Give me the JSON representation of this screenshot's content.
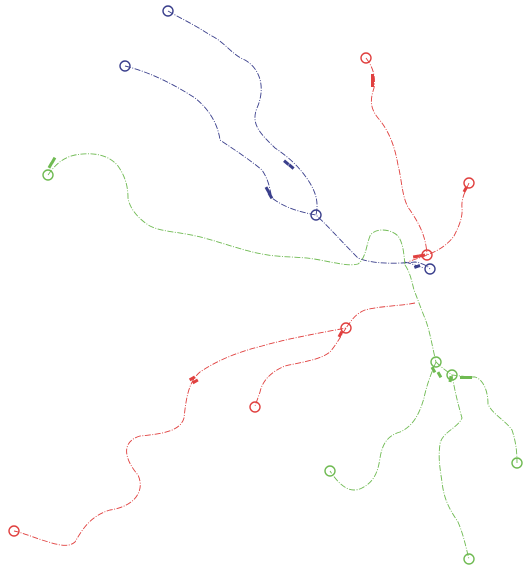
{
  "colors": {
    "background": "#ffffff",
    "red": "#e0403f",
    "blue": "#3a3f8c",
    "green": "#6fba52"
  },
  "diagram": {
    "kind": "tracking-trajectories",
    "groups": [
      {
        "name": "red",
        "color_key": "red",
        "trajectory_count": 6
      },
      {
        "name": "blue",
        "color_key": "blue",
        "trajectory_count": 4
      },
      {
        "name": "green",
        "color_key": "green",
        "trajectory_count": 7
      }
    ]
  }
}
